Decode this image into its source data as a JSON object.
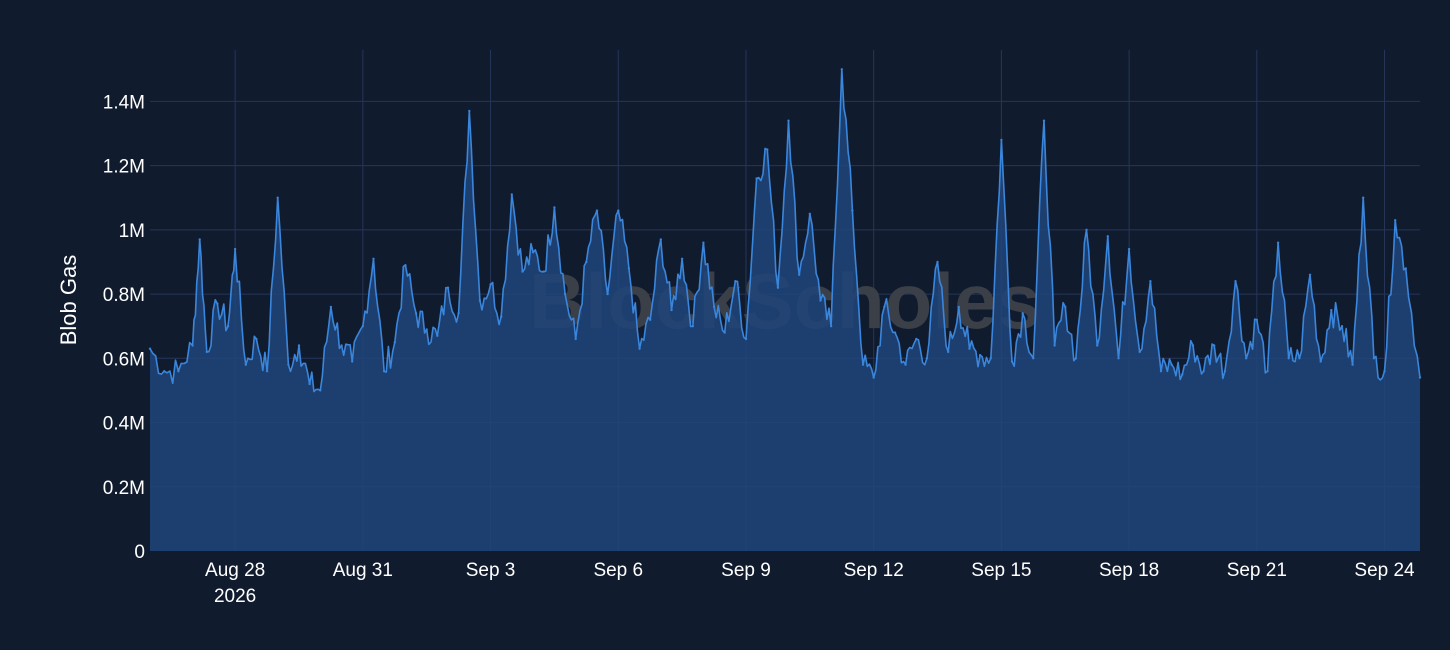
{
  "watermark": "BlockScholes",
  "colors": {
    "background": "#111b2e",
    "grid": "#26365a",
    "line": "#3a86dc",
    "fill": "#20457a",
    "text": "#ffffff"
  },
  "chart_data": {
    "type": "area",
    "title": "",
    "xlabel": "",
    "ylabel": "Blob Gas",
    "grid": true,
    "legend": "none",
    "ylim": [
      0,
      1560000
    ],
    "xlim": [
      "2026-08-26",
      "2026-09-24T20:00"
    ],
    "yticks": [
      0,
      200000,
      400000,
      600000,
      800000,
      1000000,
      1200000,
      1400000
    ],
    "ytick_labels": [
      "0",
      "0.2M",
      "0.4M",
      "0.6M",
      "0.8M",
      "1M",
      "1.2M",
      "1.4M"
    ],
    "xticks": [
      {
        "date": "2026-08-28",
        "label": "Aug 28",
        "sublabel": "2026"
      },
      {
        "date": "2026-08-31",
        "label": "Aug 31",
        "sublabel": ""
      },
      {
        "date": "2026-09-03",
        "label": "Sep 3",
        "sublabel": ""
      },
      {
        "date": "2026-09-06",
        "label": "Sep 6",
        "sublabel": ""
      },
      {
        "date": "2026-09-09",
        "label": "Sep 9",
        "sublabel": ""
      },
      {
        "date": "2026-09-12",
        "label": "Sep 12",
        "sublabel": ""
      },
      {
        "date": "2026-09-15",
        "label": "Sep 15",
        "sublabel": ""
      },
      {
        "date": "2026-09-18",
        "label": "Sep 18",
        "sublabel": ""
      },
      {
        "date": "2026-09-21",
        "label": "Sep 21",
        "sublabel": ""
      },
      {
        "date": "2026-09-24",
        "label": "Sep 24",
        "sublabel": ""
      }
    ],
    "series": [
      {
        "x": [
          "2026-08-26T00:00",
          "2026-08-26T08:00",
          "2026-08-26T16:00",
          "2026-08-27T00:00",
          "2026-08-27T04:00",
          "2026-08-27T08:00",
          "2026-08-27T14:00",
          "2026-08-27T20:00",
          "2026-08-28T00:00",
          "2026-08-28T06:00",
          "2026-08-28T12:00",
          "2026-08-28T18:00",
          "2026-08-29T00:00",
          "2026-08-29T06:00",
          "2026-08-29T12:00",
          "2026-08-29T18:00",
          "2026-08-30T00:00",
          "2026-08-30T06:00",
          "2026-08-30T12:00",
          "2026-08-30T18:00",
          "2026-08-31T00:00",
          "2026-08-31T06:00",
          "2026-08-31T12:00",
          "2026-08-31T18:00",
          "2026-09-01T00:00",
          "2026-09-01T06:00",
          "2026-09-01T12:00",
          "2026-09-01T18:00",
          "2026-09-02T00:00",
          "2026-09-02T06:00",
          "2026-09-02T12:00",
          "2026-09-02T18:00",
          "2026-09-03T00:00",
          "2026-09-03T06:00",
          "2026-09-03T12:00",
          "2026-09-03T18:00",
          "2026-09-04T00:00",
          "2026-09-04T06:00",
          "2026-09-04T12:00",
          "2026-09-04T18:00",
          "2026-09-05T00:00",
          "2026-09-05T06:00",
          "2026-09-05T12:00",
          "2026-09-05T18:00",
          "2026-09-06T00:00",
          "2026-09-06T06:00",
          "2026-09-06T12:00",
          "2026-09-06T18:00",
          "2026-09-07T00:00",
          "2026-09-07T06:00",
          "2026-09-07T12:00",
          "2026-09-07T18:00",
          "2026-09-08T00:00",
          "2026-09-08T06:00",
          "2026-09-08T12:00",
          "2026-09-08T18:00",
          "2026-09-09T00:00",
          "2026-09-09T06:00",
          "2026-09-09T12:00",
          "2026-09-09T18:00",
          "2026-09-10T00:00",
          "2026-09-10T06:00",
          "2026-09-10T12:00",
          "2026-09-10T18:00",
          "2026-09-11T00:00",
          "2026-09-11T06:00",
          "2026-09-11T12:00",
          "2026-09-11T18:00",
          "2026-09-12T00:00",
          "2026-09-12T06:00",
          "2026-09-12T12:00",
          "2026-09-12T18:00",
          "2026-09-13T00:00",
          "2026-09-13T06:00",
          "2026-09-13T12:00",
          "2026-09-13T18:00",
          "2026-09-14T00:00",
          "2026-09-14T06:00",
          "2026-09-14T12:00",
          "2026-09-14T18:00",
          "2026-09-15T00:00",
          "2026-09-15T06:00",
          "2026-09-15T12:00",
          "2026-09-15T18:00",
          "2026-09-16T00:00",
          "2026-09-16T06:00",
          "2026-09-16T12:00",
          "2026-09-16T18:00",
          "2026-09-17T00:00",
          "2026-09-17T06:00",
          "2026-09-17T12:00",
          "2026-09-17T18:00",
          "2026-09-18T00:00",
          "2026-09-18T06:00",
          "2026-09-18T12:00",
          "2026-09-18T18:00",
          "2026-09-19T00:00",
          "2026-09-19T06:00",
          "2026-09-19T12:00",
          "2026-09-19T18:00",
          "2026-09-20T00:00",
          "2026-09-20T06:00",
          "2026-09-20T12:00",
          "2026-09-20T18:00",
          "2026-09-21T00:00",
          "2026-09-21T06:00",
          "2026-09-21T12:00",
          "2026-09-21T18:00",
          "2026-09-22T00:00",
          "2026-09-22T06:00",
          "2026-09-22T12:00",
          "2026-09-22T18:00",
          "2026-09-23T00:00",
          "2026-09-23T06:00",
          "2026-09-23T12:00",
          "2026-09-23T18:00",
          "2026-09-24T00:00",
          "2026-09-24T06:00",
          "2026-09-24T12:00",
          "2026-09-24T20:00"
        ],
        "values": [
          630000,
          560000,
          560000,
          640000,
          970000,
          620000,
          770000,
          700000,
          940000,
          580000,
          660000,
          560000,
          1100000,
          580000,
          640000,
          520000,
          500000,
          760000,
          640000,
          590000,
          700000,
          910000,
          560000,
          650000,
          890000,
          740000,
          690000,
          670000,
          820000,
          740000,
          1370000,
          780000,
          830000,
          730000,
          1110000,
          870000,
          930000,
          870000,
          1070000,
          800000,
          660000,
          900000,
          1060000,
          800000,
          1060000,
          880000,
          630000,
          720000,
          970000,
          750000,
          910000,
          700000,
          960000,
          760000,
          680000,
          840000,
          660000,
          1160000,
          1250000,
          820000,
          1340000,
          860000,
          1050000,
          780000,
          700000,
          1500000,
          1060000,
          580000,
          540000,
          760000,
          680000,
          580000,
          660000,
          600000,
          900000,
          620000,
          760000,
          630000,
          610000,
          600000,
          1280000,
          590000,
          740000,
          600000,
          1340000,
          640000,
          760000,
          600000,
          1000000,
          640000,
          980000,
          600000,
          940000,
          620000,
          840000,
          560000,
          580000,
          550000,
          640000,
          560000,
          640000,
          560000,
          840000,
          600000,
          720000,
          560000,
          960000,
          600000,
          600000,
          860000,
          590000,
          750000,
          700000,
          580000,
          1100000,
          600000,
          560000,
          1030000,
          880000,
          540000
        ]
      }
    ]
  }
}
